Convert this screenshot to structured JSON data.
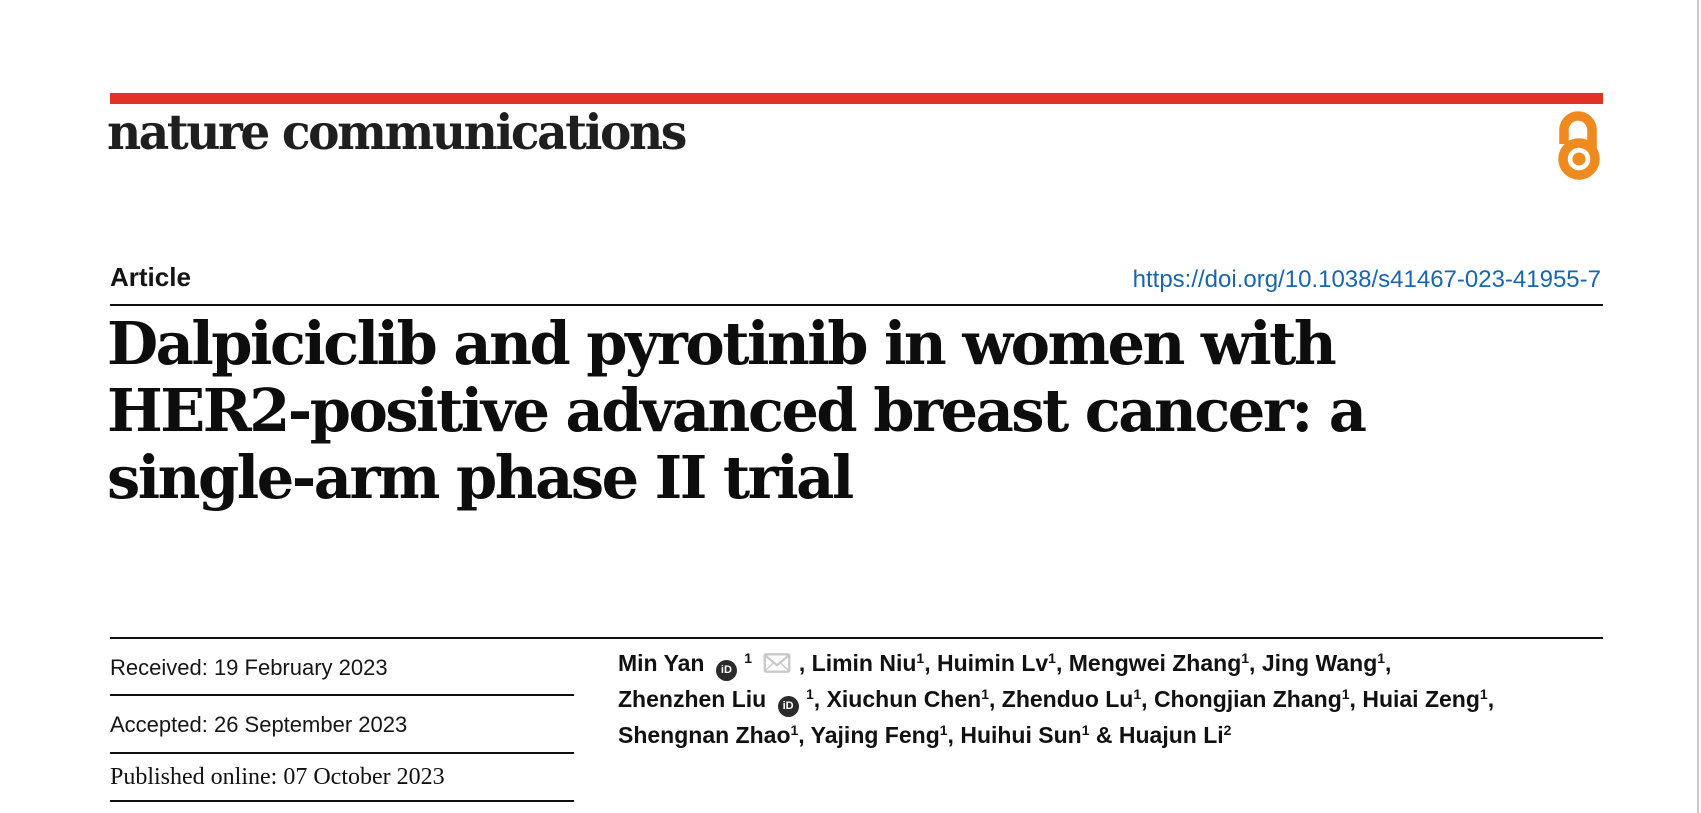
{
  "theme": {
    "accent_red": "#e23226",
    "doi_blue": "#1966ad",
    "oa_orange": "#ef8a1f",
    "orcid_dark": "#2b2b2b",
    "mail_gray": "#c9c9c9",
    "edge_gray": "#cbcbcf",
    "ink": "#141414"
  },
  "masthead": {
    "journal_name": "nature communications",
    "open_access_icon": "open-access-padlock-icon"
  },
  "article_meta": {
    "type_label": "Article",
    "doi": "https://doi.org/10.1038/s41467-023-41955-7"
  },
  "title": {
    "lines": [
      "Dalpiciclib and pyrotinib in women with",
      "HER2-positive advanced breast cancer: a",
      "single-arm phase II trial"
    ]
  },
  "dates": {
    "rows": [
      {
        "text": "Received: 19 February 2023"
      },
      {
        "text": "Accepted: 26 September 2023"
      },
      {
        "text": "Published online: 07 October 2023"
      }
    ]
  },
  "authors": {
    "list": [
      {
        "name": "Min Yan",
        "sup": "1",
        "orcid": true,
        "email": true
      },
      {
        "name": "Limin Niu",
        "sup": "1"
      },
      {
        "name": "Huimin Lv",
        "sup": "1"
      },
      {
        "name": "Mengwei Zhang",
        "sup": "1"
      },
      {
        "name": "Jing Wang",
        "sup": "1",
        "break_after": true
      },
      {
        "name": "Zhenzhen Liu",
        "sup": "1",
        "orcid": true
      },
      {
        "name": "Xiuchun Chen",
        "sup": "1"
      },
      {
        "name": "Zhenduo Lu",
        "sup": "1"
      },
      {
        "name": "Chongjian Zhang",
        "sup": "1"
      },
      {
        "name": "Huiai Zeng",
        "sup": "1",
        "break_after": true
      },
      {
        "name": "Shengnan Zhao",
        "sup": "1"
      },
      {
        "name": "Yajing Feng",
        "sup": "1"
      },
      {
        "name": "Huihui Sun",
        "sup": "1"
      },
      {
        "name": "Huajun Li",
        "sup": "2"
      }
    ]
  }
}
